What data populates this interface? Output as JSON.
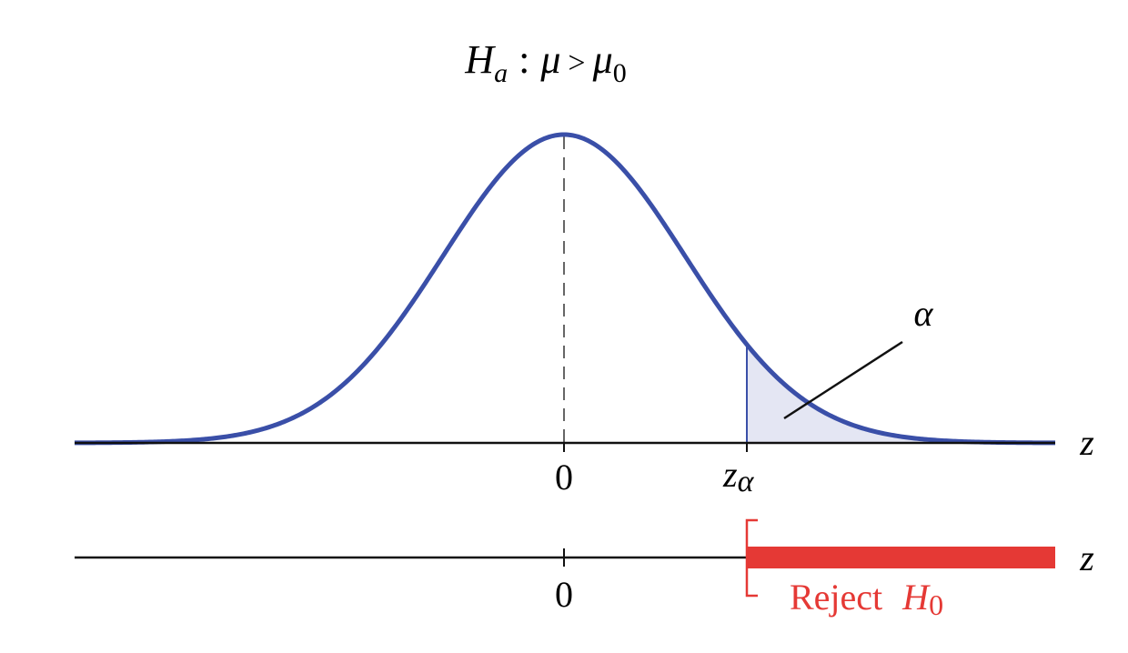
{
  "title": {
    "h": "H",
    "h_sub": "a",
    "colon": ":",
    "mu": "μ",
    "gt": ">",
    "mu2": "μ",
    "mu2_sub": "0"
  },
  "top_axis": {
    "label": "z",
    "zero": "0",
    "critical": "z",
    "critical_sub": "α"
  },
  "alpha_label": "α",
  "bottom_axis": {
    "label": "z",
    "zero": "0",
    "reject": "Reject",
    "h": "H",
    "h_sub": "0"
  }
}
